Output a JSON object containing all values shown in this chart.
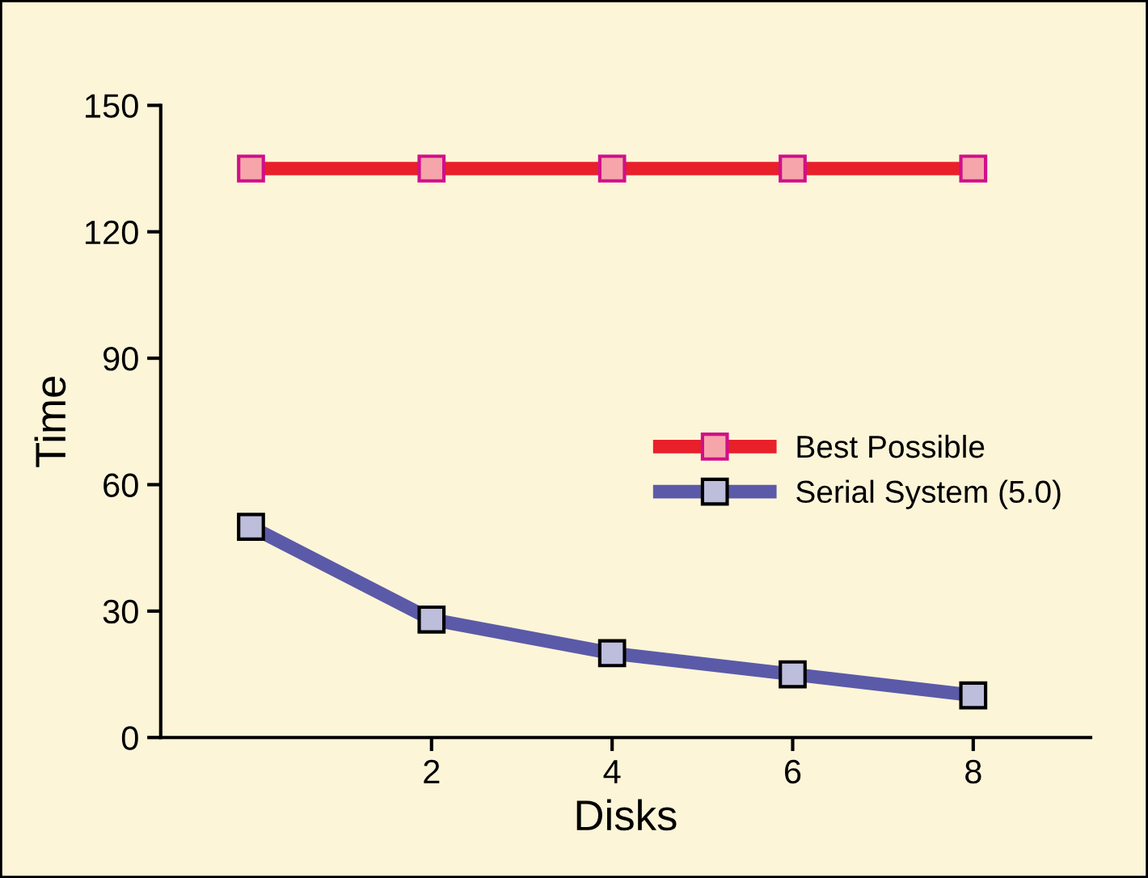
{
  "chart_data": {
    "type": "line",
    "xlabel": "Disks",
    "ylabel": "Time",
    "x": [
      0,
      2,
      4,
      6,
      8
    ],
    "series": [
      {
        "name": "Best Possible",
        "color": "#e8202a",
        "values": [
          135,
          135,
          135,
          135,
          135
        ]
      },
      {
        "name": "Serial System (5.0)",
        "color": "#5b5aa8",
        "values": [
          50,
          28,
          20,
          15,
          10
        ]
      }
    ],
    "xlim": [
      -1,
      9.3
    ],
    "xticks": [
      2,
      4,
      6,
      8
    ],
    "ylim": [
      0,
      150
    ],
    "yticks": [
      0,
      30,
      60,
      90,
      120,
      150
    ],
    "marker": "square",
    "line_style": "solid",
    "grid": false,
    "legend": "right"
  }
}
